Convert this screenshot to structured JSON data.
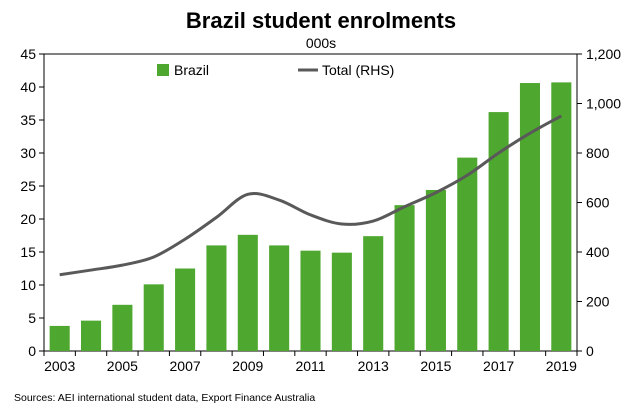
{
  "chart_data": {
    "type": "bar",
    "title": "Brazil student enrolments",
    "subtitle": "000s",
    "x": [
      2003,
      2004,
      2005,
      2006,
      2007,
      2008,
      2009,
      2010,
      2011,
      2012,
      2013,
      2014,
      2015,
      2016,
      2017,
      2018,
      2019
    ],
    "x_tick_labels": [
      "2003",
      "2005",
      "2007",
      "2009",
      "2011",
      "2013",
      "2015",
      "2017",
      "2019"
    ],
    "series": [
      {
        "name": "Brazil",
        "type": "bar",
        "axis": "left",
        "color": "#4EA72E",
        "values": [
          3.8,
          4.6,
          7.0,
          10.1,
          12.5,
          16.0,
          17.6,
          16.0,
          15.2,
          14.9,
          17.4,
          22.1,
          24.4,
          29.3,
          36.2,
          40.6,
          40.7
        ]
      },
      {
        "name": "Total (RHS)",
        "type": "line",
        "axis": "right",
        "color": "#595959",
        "values": [
          308,
          327,
          347,
          380,
          452,
          540,
          633,
          610,
          550,
          513,
          525,
          583,
          640,
          710,
          800,
          880,
          950
        ]
      }
    ],
    "y_left": {
      "min": 0,
      "max": 45,
      "step": 5,
      "tick_labels": [
        "0",
        "5",
        "10",
        "15",
        "20",
        "25",
        "30",
        "35",
        "40",
        "45"
      ]
    },
    "y_right": {
      "min": 0,
      "max": 1200,
      "step": 200,
      "tick_labels": [
        "0",
        "200",
        "400",
        "600",
        "800",
        "1,000",
        "1,200"
      ]
    },
    "legend_position": "top",
    "grid": false
  },
  "source": "Sources: AEI international student data, Export Finance Australia"
}
